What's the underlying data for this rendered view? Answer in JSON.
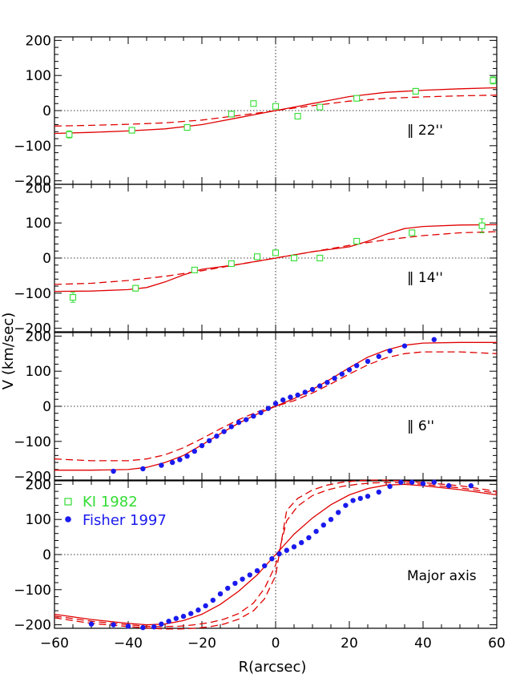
{
  "chart_data": {
    "type": "scatter",
    "xlabel": "R(arcsec)",
    "ylabel": "V (km/sec)",
    "xlim": [
      -60,
      60
    ],
    "ylim": [
      -210,
      210
    ],
    "x_ticks": [
      -60,
      -40,
      -20,
      0,
      20,
      40,
      60
    ],
    "y_ticks": [
      -200,
      -100,
      0,
      100,
      200
    ],
    "colors": {
      "ki": "#33dd33",
      "fisher": "#1a1aee",
      "model": "#e00000"
    },
    "legend": {
      "position": "top-left",
      "entries": [
        {
          "label": "KI 1982",
          "marker": "open-square",
          "color": "#33dd33"
        },
        {
          "label": "Fisher 1997",
          "marker": "filled-circle",
          "color": "#1a1aee"
        }
      ]
    },
    "panels": [
      {
        "label": " 22''",
        "label_text": "‖ 22''",
        "ki": [
          {
            "x": -56,
            "y": -68,
            "e": 10
          },
          {
            "x": -39,
            "y": -56,
            "e": 8
          },
          {
            "x": -24,
            "y": -48,
            "e": 8
          },
          {
            "x": -12,
            "y": -10,
            "e": 8
          },
          {
            "x": -6,
            "y": 20,
            "e": 6
          },
          {
            "x": 0,
            "y": 12,
            "e": 6
          },
          {
            "x": 6,
            "y": -16,
            "e": 8
          },
          {
            "x": 12,
            "y": 10,
            "e": 6
          },
          {
            "x": 22,
            "y": 35,
            "e": 6
          },
          {
            "x": 38,
            "y": 55,
            "e": 8
          },
          {
            "x": 59,
            "y": 86,
            "e": 10
          }
        ],
        "fisher": [],
        "models": [
          {
            "style": "solid",
            "x": [
              -60,
              -50,
              -40,
              -30,
              -20,
              -10,
              -5,
              0,
              5,
              10,
              20,
              30,
              40,
              50,
              60
            ],
            "y": [
              -65,
              -62,
              -58,
              -52,
              -40,
              -20,
              -10,
              0,
              10,
              20,
              40,
              52,
              58,
              62,
              65
            ]
          },
          {
            "style": "dashed",
            "x": [
              -60,
              -50,
              -40,
              -30,
              -20,
              -10,
              -5,
              0,
              5,
              10,
              20,
              30,
              40,
              50,
              60
            ],
            "y": [
              -44,
              -42,
              -39,
              -35,
              -27,
              -14,
              -7,
              0,
              7,
              14,
              27,
              35,
              39,
              42,
              44
            ]
          }
        ]
      },
      {
        "label_text": "‖ 14''",
        "ki": [
          {
            "x": -55,
            "y": -112,
            "e": 14
          },
          {
            "x": -38,
            "y": -86,
            "e": 8
          },
          {
            "x": -22,
            "y": -34,
            "e": 6
          },
          {
            "x": -12,
            "y": -16,
            "e": 6
          },
          {
            "x": -5,
            "y": 4,
            "e": 6
          },
          {
            "x": 0,
            "y": 15,
            "e": 8
          },
          {
            "x": 5,
            "y": 0,
            "e": 6
          },
          {
            "x": 12,
            "y": 0,
            "e": 6
          },
          {
            "x": 22,
            "y": 48,
            "e": 6
          },
          {
            "x": 37,
            "y": 72,
            "e": 8
          },
          {
            "x": 56,
            "y": 92,
            "e": 20
          }
        ],
        "fisher": [],
        "models": [
          {
            "style": "solid",
            "x": [
              -60,
              -50,
              -40,
              -35,
              -30,
              -25,
              -20,
              -10,
              0,
              10,
              20,
              25,
              30,
              35,
              40,
              50,
              60
            ],
            "y": [
              -95,
              -94,
              -90,
              -84,
              -68,
              -48,
              -32,
              -18,
              0,
              18,
              32,
              48,
              68,
              84,
              90,
              94,
              95
            ]
          },
          {
            "style": "dashed",
            "x": [
              -60,
              -50,
              -40,
              -30,
              -20,
              -10,
              0,
              10,
              20,
              30,
              40,
              50,
              60
            ],
            "y": [
              -75,
              -72,
              -64,
              -52,
              -36,
              -18,
              0,
              18,
              36,
              52,
              64,
              72,
              75
            ]
          }
        ]
      },
      {
        "label_text": "‖ 6''",
        "ki": [],
        "fisher": [
          {
            "x": -44,
            "y": -185
          },
          {
            "x": -36,
            "y": -178
          },
          {
            "x": -31,
            "y": -168
          },
          {
            "x": -28,
            "y": -160
          },
          {
            "x": -26,
            "y": -152
          },
          {
            "x": -24,
            "y": -142
          },
          {
            "x": -22,
            "y": -128
          },
          {
            "x": -20,
            "y": -112
          },
          {
            "x": -18,
            "y": -98
          },
          {
            "x": -16,
            "y": -85
          },
          {
            "x": -14,
            "y": -72
          },
          {
            "x": -12,
            "y": -58
          },
          {
            "x": -10,
            "y": -46
          },
          {
            "x": -8,
            "y": -38
          },
          {
            "x": -6,
            "y": -28
          },
          {
            "x": -4,
            "y": -18
          },
          {
            "x": -2,
            "y": -6
          },
          {
            "x": 0,
            "y": 8
          },
          {
            "x": 2,
            "y": 18
          },
          {
            "x": 4,
            "y": 26
          },
          {
            "x": 6,
            "y": 32
          },
          {
            "x": 8,
            "y": 40
          },
          {
            "x": 10,
            "y": 48
          },
          {
            "x": 12,
            "y": 58
          },
          {
            "x": 14,
            "y": 68
          },
          {
            "x": 16,
            "y": 80
          },
          {
            "x": 18,
            "y": 92
          },
          {
            "x": 20,
            "y": 104
          },
          {
            "x": 22,
            "y": 116
          },
          {
            "x": 25,
            "y": 128
          },
          {
            "x": 28,
            "y": 142
          },
          {
            "x": 31,
            "y": 158
          },
          {
            "x": 35,
            "y": 172
          },
          {
            "x": 43,
            "y": 190
          }
        ],
        "models": [
          {
            "style": "solid",
            "x": [
              -60,
              -50,
              -40,
              -35,
              -30,
              -25,
              -20,
              -15,
              -10,
              -5,
              0,
              5,
              10,
              15,
              20,
              25,
              30,
              35,
              40,
              50,
              60
            ],
            "y": [
              -182,
              -182,
              -180,
              -174,
              -160,
              -140,
              -110,
              -78,
              -48,
              -22,
              0,
              22,
              48,
              78,
              110,
              140,
              160,
              174,
              180,
              182,
              182
            ]
          },
          {
            "style": "dashed",
            "x": [
              -60,
              -50,
              -40,
              -35,
              -30,
              -25,
              -20,
              -15,
              -10,
              -5,
              0,
              5,
              10,
              15,
              20,
              25,
              30,
              35,
              40,
              50,
              60
            ],
            "y": [
              -150,
              -155,
              -155,
              -150,
              -138,
              -118,
              -92,
              -64,
              -38,
              -16,
              0,
              16,
              38,
              64,
              92,
              118,
              138,
              150,
              155,
              155,
              150
            ]
          }
        ]
      },
      {
        "label_text": "Major axis",
        "ki": [],
        "fisher": [
          {
            "x": -50,
            "y": -198
          },
          {
            "x": -44,
            "y": -200
          },
          {
            "x": -40,
            "y": -204
          },
          {
            "x": -36,
            "y": -208
          },
          {
            "x": -33,
            "y": -206
          },
          {
            "x": -31,
            "y": -198
          },
          {
            "x": -29,
            "y": -190
          },
          {
            "x": -27,
            "y": -182
          },
          {
            "x": -25,
            "y": -176
          },
          {
            "x": -23,
            "y": -168
          },
          {
            "x": -21,
            "y": -158
          },
          {
            "x": -19,
            "y": -146
          },
          {
            "x": -17,
            "y": -130
          },
          {
            "x": -15,
            "y": -112
          },
          {
            "x": -13,
            "y": -96
          },
          {
            "x": -11,
            "y": -82
          },
          {
            "x": -9,
            "y": -70
          },
          {
            "x": -7,
            "y": -58
          },
          {
            "x": -5,
            "y": -46
          },
          {
            "x": -3,
            "y": -32
          },
          {
            "x": -1,
            "y": -12
          },
          {
            "x": 1,
            "y": 2
          },
          {
            "x": 3,
            "y": 12
          },
          {
            "x": 5,
            "y": 22
          },
          {
            "x": 7,
            "y": 34
          },
          {
            "x": 9,
            "y": 48
          },
          {
            "x": 11,
            "y": 66
          },
          {
            "x": 13,
            "y": 84
          },
          {
            "x": 15,
            "y": 100
          },
          {
            "x": 17,
            "y": 120
          },
          {
            "x": 19,
            "y": 140
          },
          {
            "x": 21,
            "y": 154
          },
          {
            "x": 23,
            "y": 160
          },
          {
            "x": 25,
            "y": 166
          },
          {
            "x": 28,
            "y": 178
          },
          {
            "x": 31,
            "y": 194
          },
          {
            "x": 34,
            "y": 206
          },
          {
            "x": 37,
            "y": 206
          },
          {
            "x": 40,
            "y": 202
          },
          {
            "x": 43,
            "y": 206
          },
          {
            "x": 47,
            "y": 196
          },
          {
            "x": 53,
            "y": 196
          }
        ],
        "models": [
          {
            "style": "solid",
            "x": [
              -60,
              -50,
              -40,
              -35,
              -30,
              -25,
              -20,
              -15,
              -10,
              -5,
              0,
              5,
              10,
              15,
              20,
              25,
              30,
              35,
              40,
              50,
              60
            ],
            "y": [
              -170,
              -185,
              -196,
              -200,
              -198,
              -188,
              -170,
              -142,
              -104,
              -58,
              0,
              58,
              104,
              142,
              170,
              188,
              198,
              200,
              196,
              185,
              170
            ]
          },
          {
            "style": "dashed",
            "x": [
              -60,
              -50,
              -40,
              -34,
              -30,
              -26,
              -22,
              -18,
              -14,
              -10,
              -6,
              -3,
              0,
              3,
              6,
              10,
              14,
              18,
              22,
              26,
              30,
              34,
              40,
              50,
              60
            ],
            "y": [
              -175,
              -190,
              -200,
              -205,
              -205,
              -204,
              -200,
              -194,
              -184,
              -168,
              -138,
              -96,
              -30,
              96,
              138,
              168,
              184,
              194,
              200,
              204,
              205,
              205,
              200,
              190,
              175
            ]
          },
          {
            "style": "dashed",
            "x": [
              -60,
              -50,
              -40,
              -34,
              -30,
              -26,
              -22,
              -18,
              -14,
              -10,
              -6,
              -3,
              0,
              3,
              6,
              10,
              14,
              18,
              22,
              26,
              30,
              34,
              40,
              50,
              60
            ],
            "y": [
              -180,
              -196,
              -205,
              -210,
              -212,
              -212,
              -210,
              -206,
              -198,
              -184,
              -160,
              -126,
              -60,
              126,
              160,
              184,
              198,
              206,
              210,
              212,
              212,
              210,
              205,
              196,
              180
            ]
          }
        ]
      }
    ]
  }
}
